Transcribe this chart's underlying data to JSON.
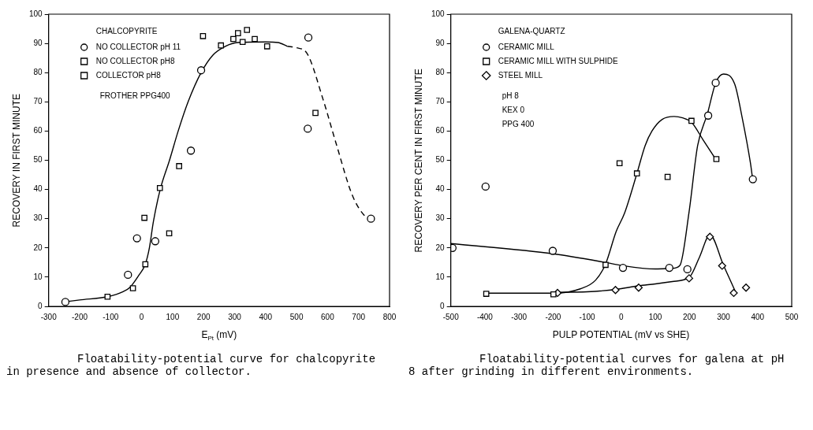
{
  "chart_data": [
    {
      "type": "scatter",
      "title": "Floatability-potential curve for chalcopyrite in presence and absence of collector.",
      "xlabel": "E$_{Pt}$ (mV)",
      "ylabel": "RECOVERY IN FIRST MINUTE",
      "legend_title": "CHALCOPYRITE",
      "legend": "top left",
      "annotations": [
        "FROTHER PPG400"
      ],
      "xlim": [
        -300,
        800
      ],
      "ylim": [
        0,
        100
      ],
      "xticks": [
        -300,
        -200,
        -100,
        0,
        100,
        200,
        300,
        400,
        500,
        600,
        700,
        800
      ],
      "yticks": [
        0,
        10,
        20,
        30,
        40,
        50,
        60,
        70,
        80,
        90,
        100
      ],
      "series": [
        {
          "name": "NO COLLECTOR pH 11",
          "color": "#000000",
          "marker": "circle",
          "x": [
            -246,
            -44,
            -15,
            44,
            159,
            192,
            538,
            536,
            740
          ],
          "values": [
            1.5,
            10.8,
            23.3,
            22.3,
            53.3,
            80.8,
            92,
            60.8,
            30
          ]
        },
        {
          "name": "NO COLLECTOR pH8",
          "color": "#000000",
          "marker": "square",
          "x": [
            -110,
            -28,
            9,
            59,
            121,
            256,
            326,
            405,
            561
          ],
          "values": [
            3.3,
            6.2,
            30.3,
            40.5,
            48,
            89.3,
            90.5,
            89,
            66.2
          ]
        },
        {
          "name": "COLLECTOR pH8",
          "color": "#000000",
          "marker": "square",
          "x": [
            12,
            89,
            198,
            296,
            311,
            340,
            365
          ],
          "values": [
            14.4,
            25,
            92.5,
            91.5,
            93.5,
            94.6,
            91.5
          ]
        },
        {
          "type": "line",
          "color": "#000000",
          "marker": "none",
          "line_style": "solid",
          "x": [
            -250,
            -200,
            -110,
            -60,
            -38,
            -10,
            12,
            25,
            38,
            60,
            90,
            118,
            150,
            192,
            230,
            270,
            310,
            400,
            440,
            470
          ],
          "values": [
            1.5,
            2.2,
            3.3,
            5,
            6.5,
            10.5,
            14.5,
            20,
            29,
            40,
            50,
            60,
            70,
            80,
            86,
            89,
            90.3,
            90.5,
            90.3,
            89
          ]
        },
        {
          "type": "line",
          "color": "#000000",
          "marker": "none",
          "line_style": "dashed",
          "x": [
            470,
            500,
            533,
            585,
            628,
            680,
            720,
            740
          ],
          "values": [
            89,
            88.5,
            86.7,
            71,
            55.6,
            38,
            31,
            30
          ]
        }
      ]
    },
    {
      "type": "scatter",
      "title": "Floatability-potential curves for galena at pH 8 after grinding in different environments.",
      "xlabel": "PULP POTENTIAL (mV vs SHE)",
      "ylabel": "RECOVERY PER CENT IN FIRST MINUTE",
      "legend_title": "GALENA-QUARTZ",
      "legend": "top left",
      "annotations": [
        "pH 8",
        "KEX 0",
        "PPG 400"
      ],
      "xlim": [
        -500,
        500
      ],
      "ylim": [
        0,
        100
      ],
      "xticks": [
        -500,
        -400,
        -300,
        -200,
        -100,
        0,
        100,
        200,
        300,
        400,
        500
      ],
      "yticks": [
        0,
        10,
        20,
        30,
        40,
        50,
        60,
        70,
        80,
        90,
        100
      ],
      "series": [
        {
          "name": "CERAMIC MILL",
          "color": "#000000",
          "marker": "circle",
          "x": [
            -495,
            -398,
            -201,
            5,
            141,
            194,
            255,
            277,
            386
          ],
          "values": [
            20,
            41,
            19,
            13.2,
            13.2,
            12.7,
            65.3,
            76.5,
            43.5
          ]
        },
        {
          "name": "CERAMIC MILL WITH SULPHIDE",
          "color": "#000000",
          "marker": "square",
          "x": [
            -396,
            -199,
            -46,
            -5,
            46,
            136,
            206,
            279
          ],
          "values": [
            4.3,
            4.1,
            14.2,
            49,
            45.5,
            44.3,
            63.5,
            50.4
          ]
        },
        {
          "name": "STEEL MILL",
          "color": "#000000",
          "marker": "diamond",
          "x": [
            -187,
            -17,
            51,
            199,
            260,
            296,
            330,
            366
          ],
          "values": [
            4.6,
            5.6,
            6.4,
            9.6,
            23.8,
            13.9,
            4.6,
            6.4
          ]
        },
        {
          "type": "line",
          "color": "#000000",
          "marker": "none",
          "line_style": "solid",
          "x": [
            -500,
            -200,
            -45,
            0,
            100,
            150,
            172,
            199,
            224,
            253,
            277,
            300,
            333,
            354,
            379,
            386
          ],
          "values": [
            21.5,
            18,
            15,
            14,
            12.8,
            13,
            14,
            32.4,
            55,
            66,
            76.5,
            79.5,
            76,
            65,
            49,
            43
          ]
        },
        {
          "type": "line",
          "color": "#000000",
          "marker": "none",
          "line_style": "solid",
          "x": [
            -400,
            -200,
            -120,
            -75,
            -46,
            -15,
            10,
            46,
            70,
            90,
            120,
            155,
            180,
            206,
            240,
            279
          ],
          "values": [
            4.5,
            4.5,
            6,
            9,
            14.5,
            25.6,
            32,
            45.5,
            55,
            60,
            64,
            65,
            64.5,
            63,
            57,
            50
          ]
        },
        {
          "type": "line",
          "color": "#000000",
          "marker": "none",
          "line_style": "solid",
          "x": [
            -190,
            -100,
            -15,
            50,
            100,
            150,
            200,
            230,
            260,
            300,
            335
          ],
          "values": [
            4.8,
            5,
            5.8,
            7,
            7.7,
            8.5,
            10,
            17,
            24.5,
            14,
            5
          ]
        }
      ]
    }
  ]
}
